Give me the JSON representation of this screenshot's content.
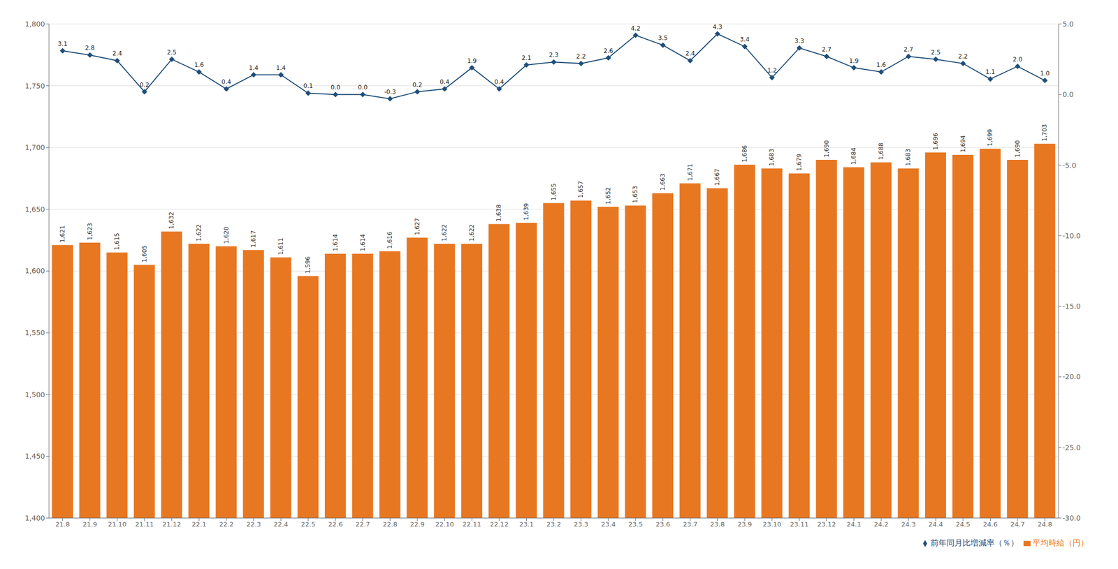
{
  "chart_data": {
    "type": "bar",
    "categories": [
      "21.8",
      "21.9",
      "21.10",
      "21.11",
      "21.12",
      "22.1",
      "22.2",
      "22.3",
      "22.4",
      "22.5",
      "22.6",
      "22.7",
      "22.8",
      "22.9",
      "22.10",
      "22.11",
      "22.12",
      "23.1",
      "23.2",
      "23.3",
      "23.4",
      "23.5",
      "23.6",
      "23.7",
      "23.8",
      "23.9",
      "23.10",
      "23.11",
      "23.12",
      "24.1",
      "24.2",
      "24.3",
      "24.4",
      "24.5",
      "24.6",
      "24.7",
      "24.8"
    ],
    "series": [
      {
        "name": "平均時給（円）",
        "type": "bar",
        "color": "#E87722",
        "values": [
          1621,
          1623,
          1615,
          1605,
          1632,
          1622,
          1620,
          1617,
          1611,
          1596,
          1614,
          1614,
          1616,
          1627,
          1622,
          1622,
          1638,
          1639,
          1655,
          1657,
          1652,
          1653,
          1663,
          1671,
          1667,
          1686,
          1683,
          1679,
          1690,
          1684,
          1688,
          1683,
          1696,
          1694,
          1699,
          1690,
          1703
        ],
        "value_labels": [
          "1,621",
          "1,623",
          "1,615",
          "1,605",
          "1,632",
          "1,622",
          "1,620",
          "1,617",
          "1,611",
          "1,596",
          "1,614",
          "1,614",
          "1,616",
          "1,627",
          "1,622",
          "1,622",
          "1,638",
          "1,639",
          "1,655",
          "1,657",
          "1,652",
          "1,653",
          "1,663",
          "1,671",
          "1,667",
          "1,686",
          "1,683",
          "1,679",
          "1,690",
          "1,684",
          "1,688",
          "1,683",
          "1,696",
          "1,694",
          "1,699",
          "1,690",
          "1,703"
        ]
      },
      {
        "name": "前年同月比増減率（％）",
        "type": "line",
        "axis": "y2",
        "color": "#1F4E79",
        "marker": "diamond",
        "values": [
          3.1,
          2.8,
          2.4,
          0.2,
          2.5,
          1.6,
          0.4,
          1.4,
          1.4,
          0.1,
          0.0,
          0.0,
          -0.3,
          0.2,
          0.4,
          1.9,
          0.4,
          2.1,
          2.3,
          2.2,
          2.6,
          4.2,
          3.5,
          2.4,
          4.3,
          3.4,
          1.2,
          3.3,
          2.7,
          1.9,
          1.6,
          2.7,
          2.5,
          2.2,
          1.1,
          2.0,
          1.0
        ],
        "value_labels": [
          "3.1",
          "2.8",
          "2.4",
          "0.2",
          "2.5",
          "1.6",
          "0.4",
          "1.4",
          "1.4",
          "0.1",
          "0.0",
          "0.0",
          "-0.3",
          "0.2",
          "0.4",
          "1.9",
          "0.4",
          "2.1",
          "2.3",
          "2.2",
          "2.6",
          "4.2",
          "3.5",
          "2.4",
          "4.3",
          "3.4",
          "1.2",
          "3.3",
          "2.7",
          "1.9",
          "1.6",
          "2.7",
          "2.5",
          "2.2",
          "1.1",
          "2.0",
          "1.0"
        ]
      }
    ],
    "ylim": [
      1400,
      1800
    ],
    "yticks": [
      {
        "value": 1400,
        "label": "1,400"
      },
      {
        "value": 1450,
        "label": "1,450"
      },
      {
        "value": 1500,
        "label": "1,500"
      },
      {
        "value": 1550,
        "label": "1,550"
      },
      {
        "value": 1600,
        "label": "1,600"
      },
      {
        "value": 1650,
        "label": "1,650"
      },
      {
        "value": 1700,
        "label": "1,700"
      },
      {
        "value": 1750,
        "label": "1,750"
      },
      {
        "value": 1800,
        "label": "1,800"
      }
    ],
    "y2lim": [
      -30,
      5
    ],
    "y2ticks": [
      {
        "value": -30,
        "label": "-30.0"
      },
      {
        "value": -25,
        "label": "-25.0"
      },
      {
        "value": -20,
        "label": "-20.0"
      },
      {
        "value": -15,
        "label": "-15.0"
      },
      {
        "value": -10,
        "label": "-10.0"
      },
      {
        "value": -5,
        "label": "-5.0"
      },
      {
        "value": 0,
        "label": "0.0"
      },
      {
        "value": 5,
        "label": "5.0"
      }
    ],
    "grid": true,
    "legend": "lower right",
    "data_labels": true
  }
}
